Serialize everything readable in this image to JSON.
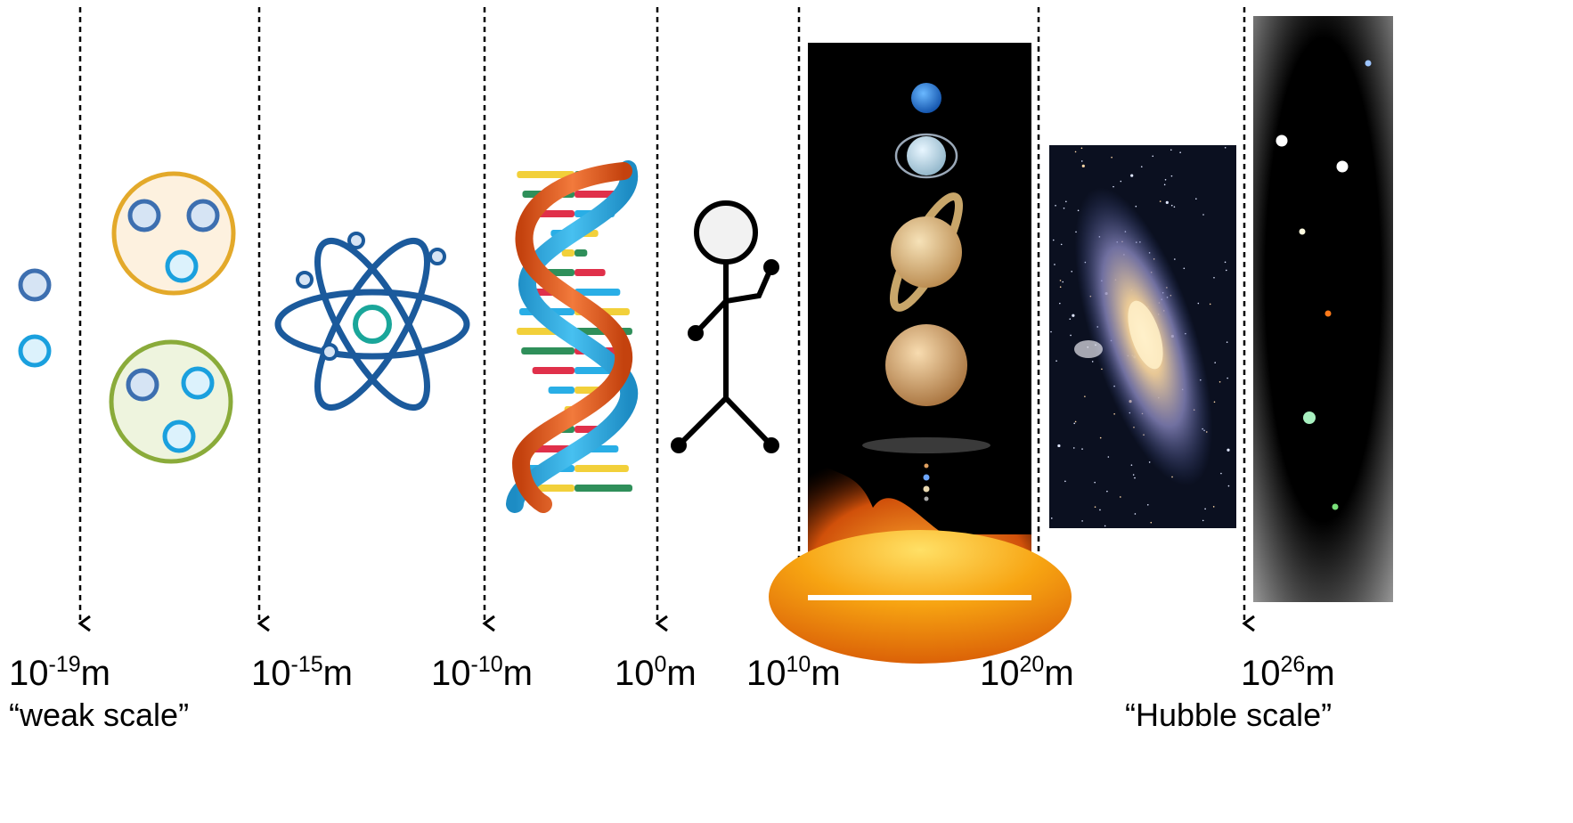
{
  "scales": [
    {
      "id": "weak",
      "base": "10",
      "exp": "-19",
      "unit": "m",
      "caption": "“weak scale”",
      "depicts": "quark-icon"
    },
    {
      "id": "nucleus",
      "base": "10",
      "exp": "-15",
      "unit": "m",
      "caption": "",
      "depicts": "nucleon-icon"
    },
    {
      "id": "atom",
      "base": "10",
      "exp": "-10",
      "unit": "m",
      "caption": "",
      "depicts": "atom-icon"
    },
    {
      "id": "human",
      "base": "10",
      "exp": "0",
      "unit": "m",
      "caption": "",
      "depicts": "stick-figure-icon"
    },
    {
      "id": "solar",
      "base": "10",
      "exp": "10",
      "unit": "m",
      "caption": "",
      "depicts": "solar-system-image"
    },
    {
      "id": "galaxy",
      "base": "10",
      "exp": "20",
      "unit": "m",
      "caption": "",
      "depicts": "galaxy-image"
    },
    {
      "id": "hubble",
      "base": "10",
      "exp": "26",
      "unit": "m",
      "caption": "“Hubble scale”",
      "depicts": "universe-image"
    }
  ],
  "colors": {
    "quark_blue": "#3d6fb0",
    "quark_cyan": "#1aa0de",
    "proton_ring": "#e3a92a",
    "proton_fill": "#fdf1df",
    "neutron_ring": "#8aab3a",
    "neutron_fill": "#eef4de",
    "atom_blue": "#1b5a9c",
    "atom_nucleus": "#1aa69a",
    "dna_orange": "#e55a22",
    "dna_blue": "#29aee6",
    "sun_orange": "#f59a12"
  }
}
